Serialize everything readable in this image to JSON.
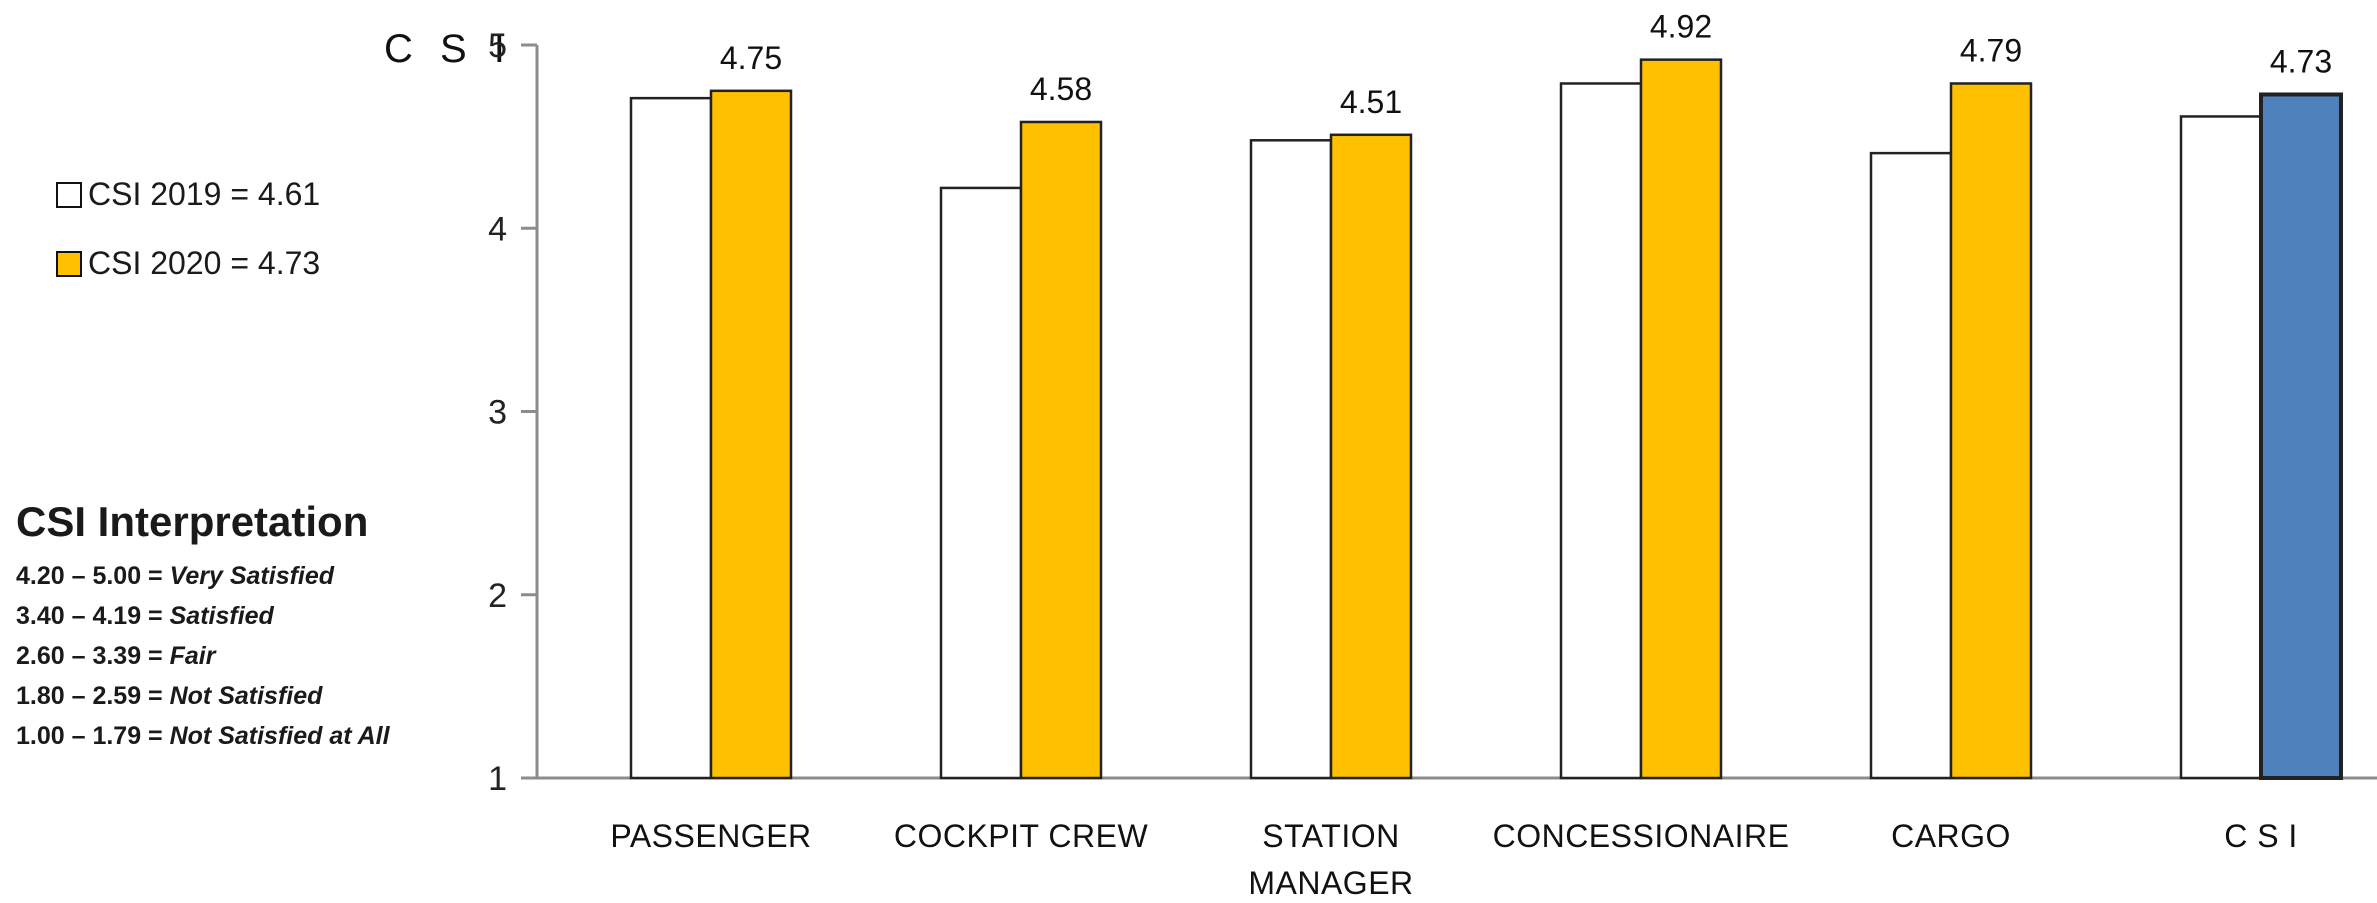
{
  "colors": {
    "y2019": "#ffffff",
    "y2020": "#ffc000",
    "csi2020": "#4f81bd",
    "axis": "#8c8c8c"
  },
  "legend": [
    {
      "label": "CSI 2019 = 4.61",
      "color": "#ffffff"
    },
    {
      "label": "CSI 2020 = 4.73",
      "color": "#ffc000"
    }
  ],
  "interpretation": {
    "title": "CSI Interpretation",
    "rows": [
      {
        "range": "4.20 – 5.00 = ",
        "desc": "Very Satisfied"
      },
      {
        "range": "3.40 – 4.19 = ",
        "desc": "Satisfied"
      },
      {
        "range": "2.60 – 3.39 = ",
        "desc": "Fair"
      },
      {
        "range": "1.80 – 2.59 = ",
        "desc": "Not Satisfied"
      },
      {
        "range": "1.00 – 1.79 = ",
        "desc": "Not Satisfied at All"
      }
    ]
  },
  "chart_data": {
    "type": "bar",
    "ylabel": "C S I",
    "ylim": [
      1,
      5
    ],
    "yticks": [
      1,
      2,
      3,
      4,
      5
    ],
    "categories": [
      [
        "PASSENGER"
      ],
      [
        "COCKPIT CREW"
      ],
      [
        "STATION",
        "MANAGER"
      ],
      [
        "CONCESSIONAIRE"
      ],
      [
        "CARGO"
      ],
      [
        "C S I"
      ]
    ],
    "series": [
      {
        "name": "CSI 2019 = 4.61",
        "values": [
          4.71,
          4.22,
          4.48,
          4.79,
          4.41,
          4.61
        ]
      },
      {
        "name": "CSI 2020 = 4.73",
        "values": [
          4.75,
          4.58,
          4.51,
          4.92,
          4.79,
          4.73
        ]
      }
    ],
    "data_labels": [
      "4.75",
      "4.58",
      "4.51",
      "4.92",
      "4.79",
      "4.73"
    ],
    "grid": false,
    "legend_position": "left"
  }
}
